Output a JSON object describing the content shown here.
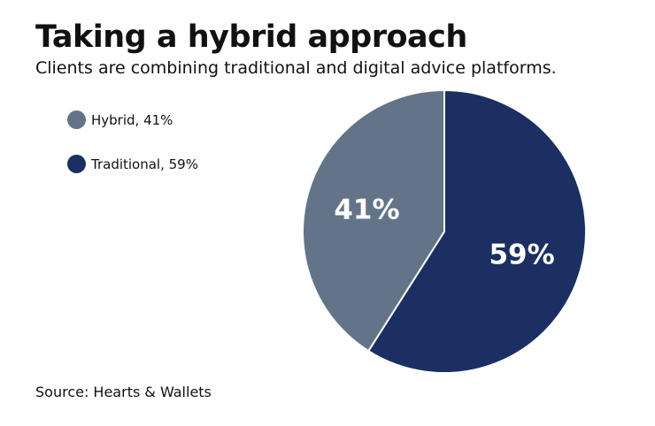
{
  "title": "Taking a hybrid approach",
  "subtitle": "Clients are combining traditional and digital advice platforms.",
  "source": "Source: Hearts & Wallets",
  "chart_data": {
    "type": "pie",
    "slices": [
      {
        "name": "Traditional",
        "value": 59,
        "label": "59%",
        "legend": "Traditional, 59%",
        "color": "#1b2f63"
      },
      {
        "name": "Hybrid",
        "value": 41,
        "label": "41%",
        "legend": "Hybrid, 41%",
        "color": "#647488"
      }
    ],
    "start": "top",
    "direction": "clockwise",
    "legend_position": "top-left"
  }
}
